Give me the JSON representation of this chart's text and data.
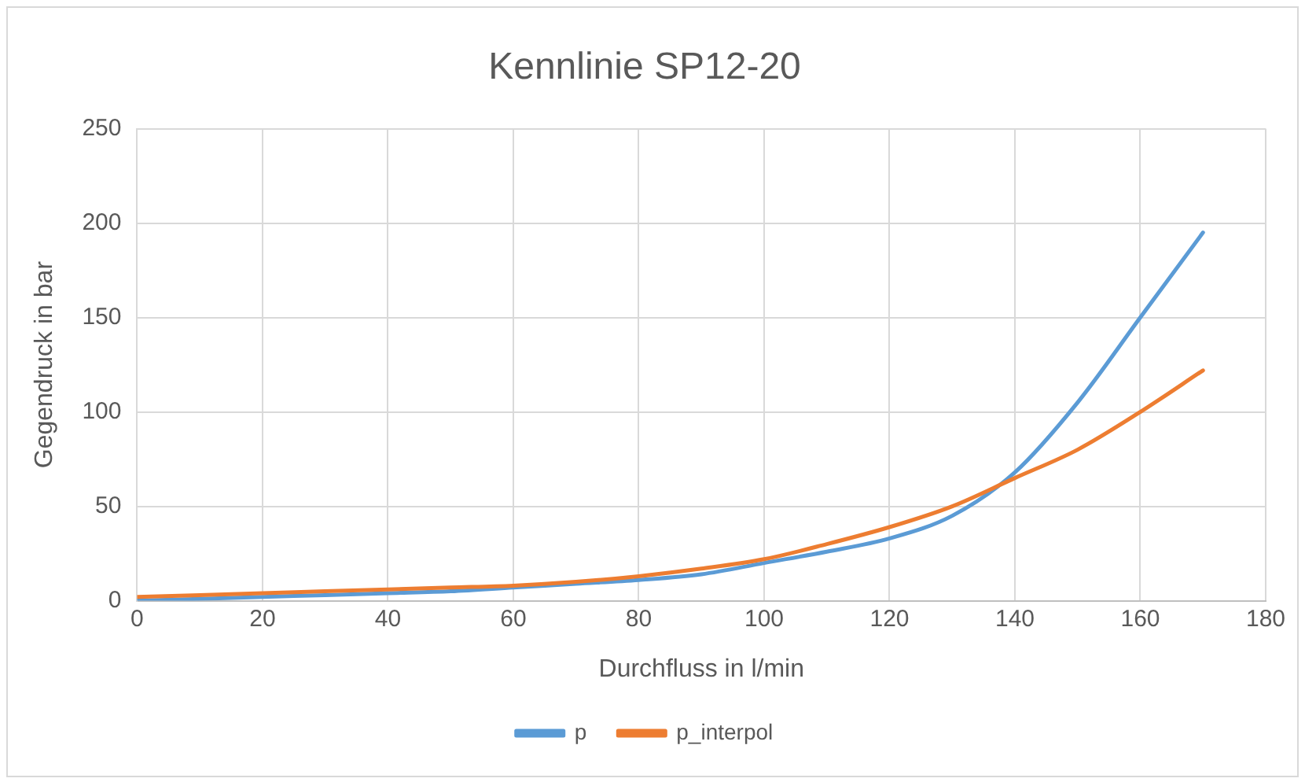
{
  "chart_data": {
    "type": "line",
    "title": "Kennlinie SP12-20",
    "xlabel": "Durchfluss in l/min",
    "ylabel": "Gegendruck in bar",
    "x": [
      0,
      10,
      20,
      30,
      40,
      50,
      60,
      70,
      80,
      90,
      100,
      110,
      120,
      130,
      140,
      150,
      160,
      170
    ],
    "series": [
      {
        "name": "p",
        "color": "#5b9bd5",
        "values": [
          0,
          1,
          2,
          3,
          4,
          5,
          7,
          9,
          11,
          14,
          20,
          26,
          33,
          45,
          68,
          105,
          150,
          195
        ]
      },
      {
        "name": "p_interpol",
        "color": "#ed7d31",
        "values": [
          2,
          3,
          4,
          5,
          6,
          7,
          8,
          10,
          13,
          17,
          22,
          30,
          39,
          50,
          65,
          80,
          100,
          122
        ]
      }
    ],
    "xlim": [
      0,
      180
    ],
    "xticks": [
      0,
      20,
      40,
      60,
      80,
      100,
      120,
      140,
      160,
      180
    ],
    "ylim": [
      0,
      250
    ],
    "yticks": [
      0,
      50,
      100,
      150,
      200,
      250
    ],
    "grid": true,
    "legend": "bottom",
    "marker": "none",
    "line_style": "solid"
  }
}
